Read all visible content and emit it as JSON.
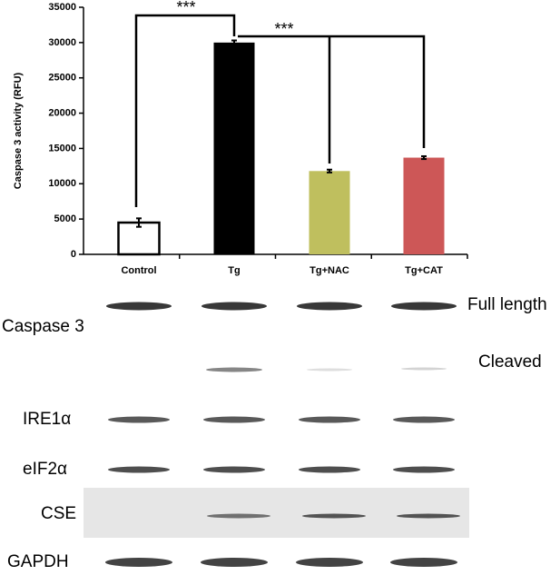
{
  "chart_data": {
    "type": "bar",
    "ylabel": "Caspase 3 activity (RFU)",
    "categories": [
      "Control",
      "Tg",
      "Tg+NAC",
      "Tg+CAT"
    ],
    "values": [
      4500,
      30000,
      11800,
      13700
    ],
    "errors": [
      600,
      300,
      200,
      200
    ],
    "colors": [
      "#ffffff",
      "#000000",
      "#bfbf5e",
      "#cd5757"
    ],
    "ylim": [
      0,
      35000
    ],
    "yticks": [
      0,
      5000,
      10000,
      15000,
      20000,
      25000,
      30000,
      35000
    ],
    "annotations": [
      "***",
      "***"
    ]
  },
  "blot": {
    "row_labels": [
      "Caspase 3",
      "IRE1α",
      "eIF2α",
      "CSE",
      "GAPDH"
    ],
    "band_labels": [
      "Full length",
      "Cleaved"
    ]
  }
}
